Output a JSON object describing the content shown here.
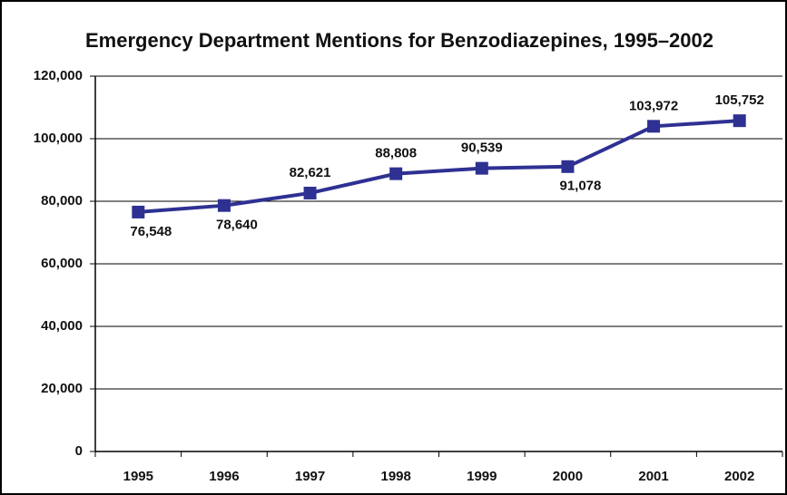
{
  "chart_data": {
    "type": "line",
    "title": "Emergency Department Mentions for Benzodiazepines, 1995–2002",
    "categories": [
      "1995",
      "1996",
      "1997",
      "1998",
      "1999",
      "2000",
      "2001",
      "2002"
    ],
    "values": [
      76548,
      78640,
      82621,
      88808,
      90539,
      91078,
      103972,
      105752
    ],
    "value_labels": [
      "76,548",
      "78,640",
      "82,621",
      "88,808",
      "90,539",
      "91,078",
      "103,972",
      "105,752"
    ],
    "color": "#2e3192",
    "ylim": [
      0,
      120000
    ],
    "yticks": [
      0,
      {
        "value": 20000,
        "label": "20,000"
      },
      {
        "value": 40000,
        "label": "40,000"
      },
      {
        "value": 60000,
        "label": "60,000"
      },
      {
        "value": 80000,
        "label": "80,000"
      },
      {
        "value": 100000,
        "label": "100,000"
      },
      {
        "value": 120000,
        "label": "120,000"
      }
    ],
    "grid": true
  }
}
